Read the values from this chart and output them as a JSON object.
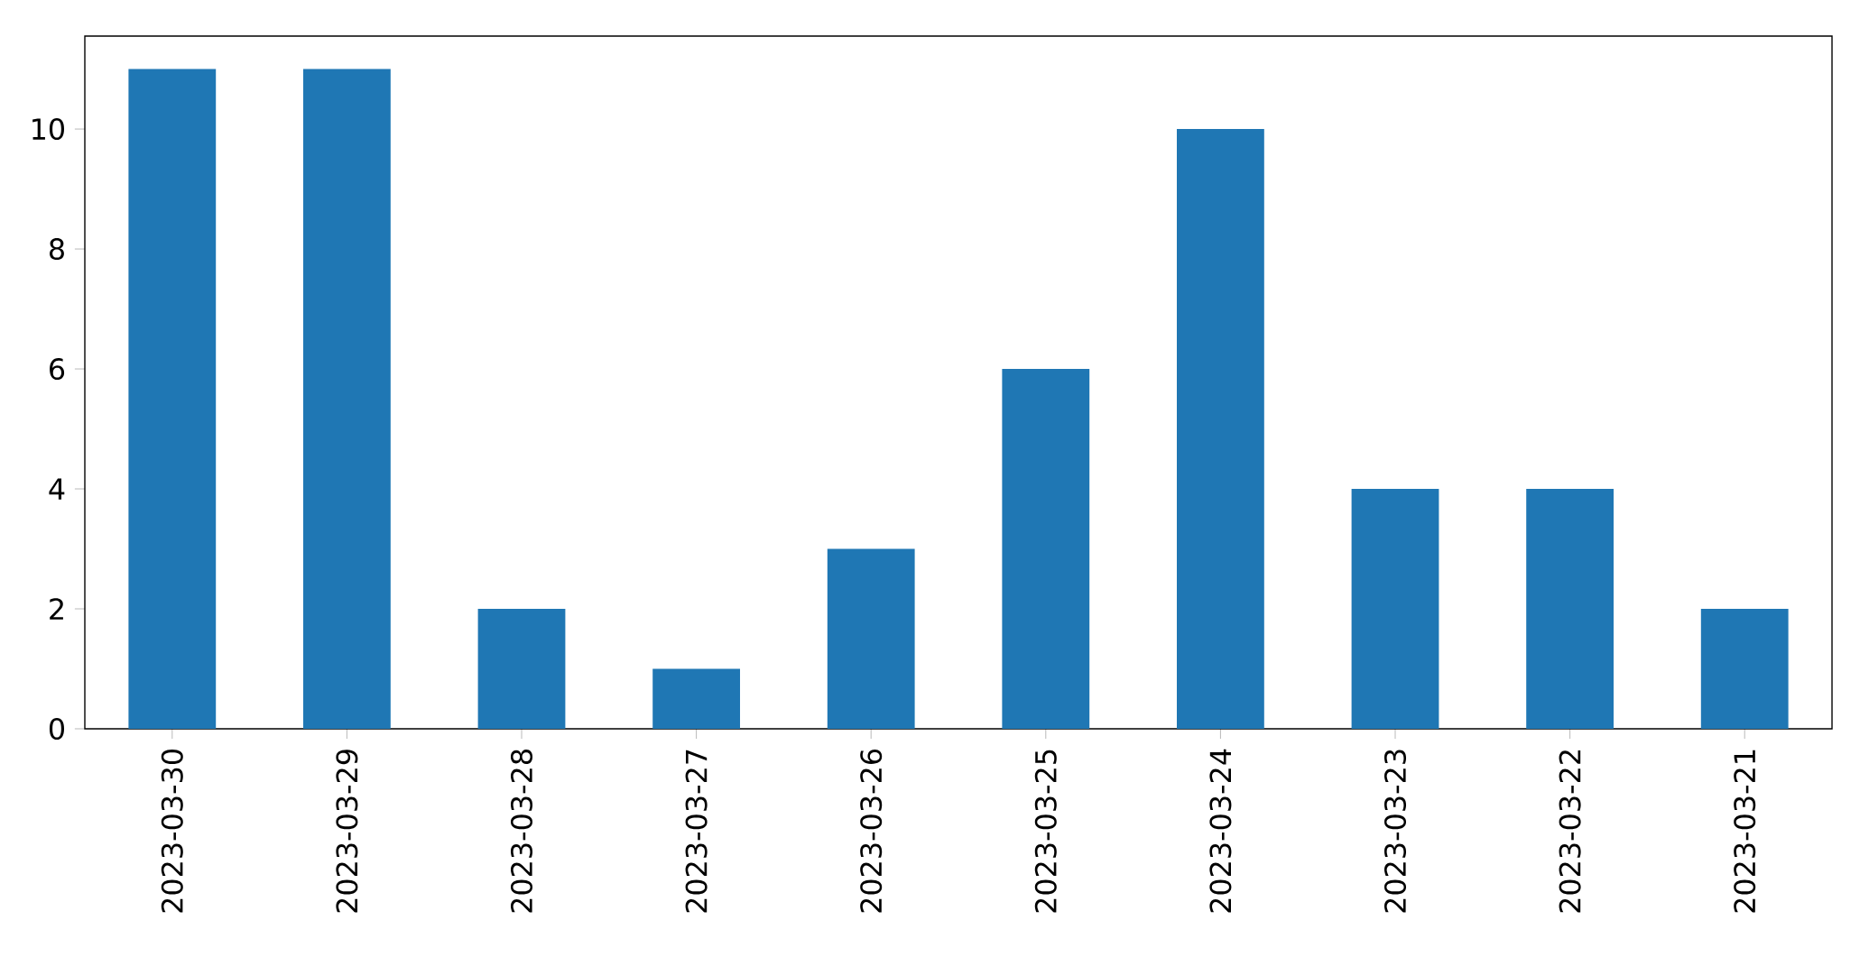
{
  "chart_data": {
    "type": "bar",
    "categories": [
      "2023-03-30",
      "2023-03-29",
      "2023-03-28",
      "2023-03-27",
      "2023-03-26",
      "2023-03-25",
      "2023-03-24",
      "2023-03-23",
      "2023-03-22",
      "2023-03-21"
    ],
    "values": [
      11,
      11,
      2,
      1,
      3,
      6,
      10,
      4,
      4,
      2
    ],
    "color": "#1f77b4",
    "ylim": [
      0,
      11.55
    ],
    "yticks": [
      0,
      2,
      4,
      6,
      8,
      10
    ],
    "grid": false
  }
}
